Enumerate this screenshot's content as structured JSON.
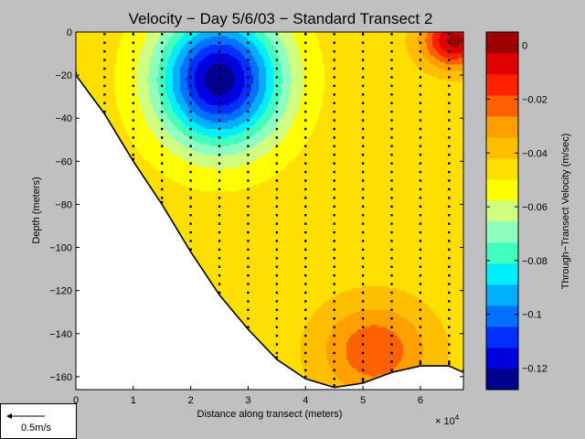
{
  "chart_data": {
    "type": "heatmap",
    "title": "Velocity − Day 5/6/03 − Standard Transect 2",
    "xlabel": "Distance along transect (meters)",
    "ylabel": "Depth (meters)",
    "x_exponent_label": "× 10",
    "x_exponent_power": "4",
    "xlim": [
      0,
      6.75
    ],
    "ylim": [
      -166,
      0
    ],
    "xticks": [
      0,
      1,
      2,
      3,
      4,
      5,
      6
    ],
    "xtick_labels": [
      "0",
      "1",
      "2",
      "3",
      "4",
      "5",
      "6"
    ],
    "yticks": [
      0,
      -20,
      -40,
      -60,
      -80,
      -100,
      -120,
      -140,
      -160
    ],
    "ytick_labels": [
      "0",
      "−20",
      "−40",
      "−60",
      "−80",
      "−100",
      "−120",
      "−140",
      "−160"
    ],
    "colorbar": {
      "label": "Through−Transect Velocity (m/sec)",
      "range": [
        -0.128,
        0.005
      ],
      "ticks": [
        0,
        -0.02,
        -0.04,
        -0.06,
        -0.08,
        -0.1,
        -0.12
      ],
      "tick_labels": [
        "0",
        "−0.02",
        "−0.04",
        "−0.06",
        "−0.08",
        "−0.1",
        "−0.12"
      ],
      "colors": [
        "#00008f",
        "#0000df",
        "#0030ff",
        "#0070ff",
        "#00b0ff",
        "#00efff",
        "#40ffbf",
        "#8fffbf",
        "#cfff80",
        "#ffff00",
        "#ffdf00",
        "#ffbf00",
        "#ff9f00",
        "#ff6000",
        "#ff2000",
        "#df0000",
        "#9f0000"
      ]
    },
    "bottom_profile": [
      [
        0.0,
        -20
      ],
      [
        0.5,
        -38
      ],
      [
        1.0,
        -60
      ],
      [
        1.5,
        -80
      ],
      [
        2.0,
        -102
      ],
      [
        2.5,
        -122
      ],
      [
        3.0,
        -138
      ],
      [
        3.5,
        -152
      ],
      [
        4.0,
        -161
      ],
      [
        4.5,
        -165
      ],
      [
        5.0,
        -163
      ],
      [
        5.5,
        -158
      ],
      [
        6.0,
        -155
      ],
      [
        6.5,
        -155
      ],
      [
        6.75,
        -158
      ]
    ],
    "velocity_field": {
      "description_values": "contoured through-transect velocity (m/s)",
      "core_min": {
        "x": 2.5,
        "depth": -22,
        "value": -0.125
      },
      "surface_max": {
        "x": 6.6,
        "depth": -4,
        "value": 0.0
      },
      "deep_max": {
        "x": 5.2,
        "depth": -148,
        "value": -0.02
      }
    },
    "profile_stations_x": [
      0.5,
      1.0,
      1.5,
      2.0,
      2.5,
      3.0,
      3.5,
      4.0,
      4.5,
      5.0,
      5.5,
      6.0,
      6.5
    ],
    "scale_label": "0.5m/s"
  }
}
